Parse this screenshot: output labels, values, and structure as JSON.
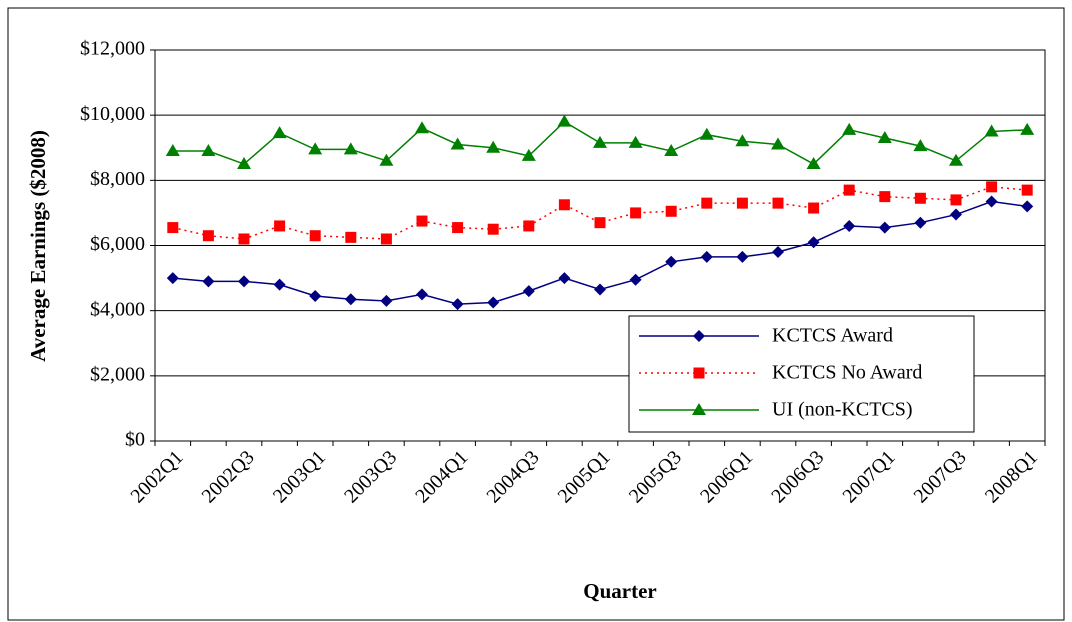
{
  "chart_data": {
    "type": "line",
    "x_label": "Quarter",
    "y_label": "Average Earnings ($2008)",
    "categories": [
      "2002Q1",
      null,
      "2002Q3",
      null,
      "2003Q1",
      null,
      "2003Q3",
      null,
      "2004Q1",
      null,
      "2004Q3",
      null,
      "2005Q1",
      null,
      "2005Q3",
      null,
      "2006Q1",
      null,
      "2006Q3",
      null,
      "2007Q1",
      null,
      "2007Q3",
      null,
      "2008Q1"
    ],
    "series": [
      {
        "name": "KCTCS Award",
        "color": "#000080",
        "marker": "diamond",
        "dash": "solid",
        "values": [
          5000,
          4900,
          4900,
          4800,
          4450,
          4350,
          4300,
          4500,
          4200,
          4250,
          4600,
          5000,
          4650,
          4950,
          5500,
          5650,
          5650,
          5800,
          6100,
          6600,
          6550,
          6700,
          6950,
          7350,
          7200
        ]
      },
      {
        "name": "KCTCS No Award",
        "color": "#ff0000",
        "marker": "square",
        "dash": "dotted",
        "values": [
          6550,
          6300,
          6200,
          6600,
          6300,
          6250,
          6200,
          6750,
          6550,
          6500,
          6600,
          7250,
          6700,
          7000,
          7050,
          7300,
          7300,
          7300,
          7150,
          7700,
          7500,
          7450,
          7400,
          7800,
          7700
        ]
      },
      {
        "name": "UI (non-KCTCS)",
        "color": "#008000",
        "marker": "triangle",
        "dash": "solid",
        "values": [
          8900,
          8900,
          8500,
          9450,
          8950,
          8950,
          8600,
          9600,
          9100,
          9000,
          8750,
          9800,
          9150,
          9150,
          8900,
          9400,
          9200,
          9100,
          8500,
          9550,
          9300,
          9050,
          8600,
          9500,
          9550
        ]
      }
    ],
    "ylim": [
      0,
      12000
    ],
    "yticks": [
      {
        "value": 0,
        "label": "$0"
      },
      {
        "value": 2000,
        "label": "$2,000"
      },
      {
        "value": 4000,
        "label": "$4,000"
      },
      {
        "value": 6000,
        "label": "$6,000"
      },
      {
        "value": 8000,
        "label": "$8,000"
      },
      {
        "value": 10000,
        "label": "$10,000"
      },
      {
        "value": 12000,
        "label": "$12,000"
      }
    ],
    "grid": true,
    "legend": "lower right"
  }
}
